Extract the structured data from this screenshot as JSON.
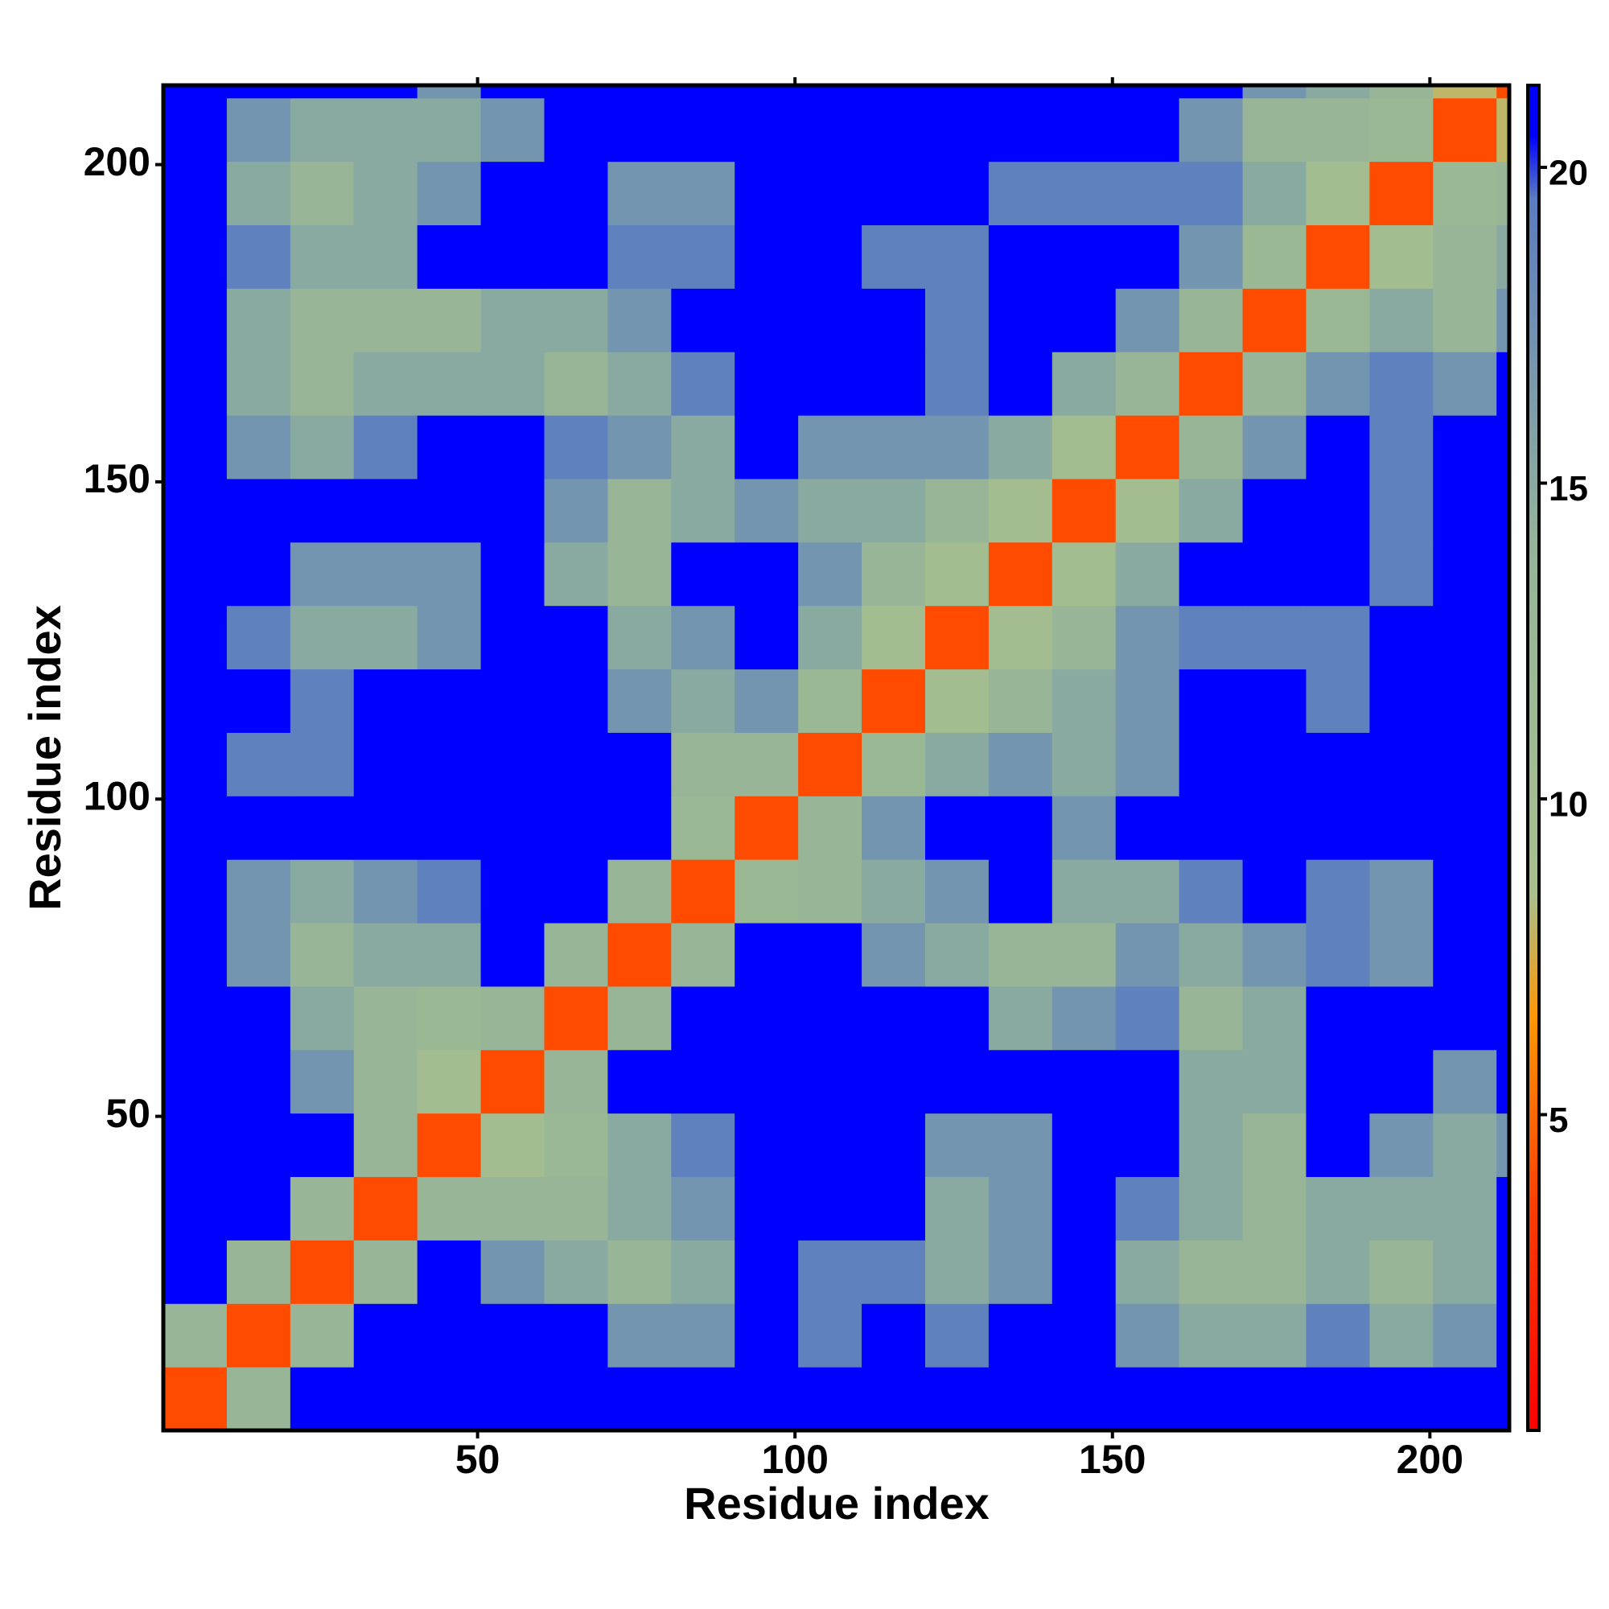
{
  "chart_data": {
    "type": "heatmap",
    "x_label": "Residue index",
    "y_label": "Residue index",
    "x_edges": [
      0.5,
      10.5,
      20.5,
      30.5,
      40.5,
      50.5,
      60.5,
      70.5,
      80.5,
      90.5,
      100.5,
      110.5,
      120.5,
      130.5,
      140.5,
      150.5,
      160.5,
      170.5,
      180.5,
      190.5,
      200.5,
      210.5,
      212.5
    ],
    "y_edges": [
      0.5,
      10.5,
      20.5,
      30.5,
      40.5,
      50.5,
      60.5,
      70.5,
      80.5,
      90.5,
      100.5,
      110.5,
      120.5,
      130.5,
      140.5,
      150.5,
      160.5,
      170.5,
      180.5,
      190.5,
      200.5,
      210.5,
      212.5
    ],
    "xlim": [
      0.5,
      212.5
    ],
    "ylim": [
      0.5,
      212.5
    ],
    "xticks": [
      50,
      100,
      150,
      200
    ],
    "yticks": [
      50,
      100,
      150,
      200
    ],
    "zlim": [
      0,
      21.3
    ],
    "zticks": [
      5,
      10,
      15,
      20
    ],
    "colorscale": [
      {
        "value": 0,
        "color": "#ff0000"
      },
      {
        "value": 3.5,
        "color": "#ff3c00"
      },
      {
        "value": 6.5,
        "color": "#ff9600"
      },
      {
        "value": 8.5,
        "color": "#a8c08c"
      },
      {
        "value": 14,
        "color": "#94b49a"
      },
      {
        "value": 19.5,
        "color": "#5a7cc0"
      },
      {
        "value": 20.5,
        "color": "#0000ff"
      },
      {
        "value": 21.3,
        "color": "#0000ff"
      }
    ],
    "z": [
      [
        4,
        13,
        21,
        21,
        21,
        21,
        21,
        21,
        21,
        21,
        21,
        21,
        21,
        21,
        21,
        21,
        21,
        21,
        21,
        21,
        21,
        21
      ],
      [
        13,
        4,
        13,
        21,
        21,
        21,
        21,
        17,
        17,
        21,
        19,
        21,
        19,
        21,
        21,
        17,
        15,
        15,
        19,
        15,
        17,
        21
      ],
      [
        21,
        13,
        4,
        13,
        21,
        17,
        15,
        13,
        15,
        21,
        19,
        19,
        15,
        17,
        21,
        15,
        13,
        13,
        15,
        13,
        15,
        21
      ],
      [
        21,
        21,
        13,
        4,
        13,
        13,
        13,
        15,
        17,
        21,
        21,
        21,
        15,
        17,
        21,
        19,
        15,
        13,
        15,
        15,
        15,
        21
      ],
      [
        21,
        21,
        21,
        13,
        4,
        10,
        12,
        15,
        19,
        21,
        21,
        21,
        17,
        17,
        21,
        21,
        15,
        13,
        21,
        17,
        15,
        17
      ],
      [
        21,
        21,
        17,
        13,
        10,
        4,
        13,
        21,
        21,
        21,
        21,
        21,
        21,
        21,
        21,
        21,
        15,
        15,
        21,
        21,
        17,
        21
      ],
      [
        21,
        21,
        15,
        13,
        12,
        13,
        4,
        13,
        21,
        21,
        21,
        21,
        21,
        15,
        17,
        19,
        13,
        15,
        21,
        21,
        21,
        21
      ],
      [
        21,
        17,
        13,
        15,
        15,
        21,
        13,
        4,
        13,
        21,
        21,
        17,
        15,
        13,
        13,
        17,
        15,
        17,
        19,
        17,
        21,
        21
      ],
      [
        21,
        17,
        15,
        17,
        19,
        21,
        21,
        13,
        4,
        12,
        13,
        15,
        17,
        21,
        15,
        15,
        19,
        21,
        19,
        17,
        21,
        21
      ],
      [
        21,
        21,
        21,
        21,
        21,
        21,
        21,
        21,
        12,
        4,
        13,
        17,
        21,
        21,
        17,
        21,
        21,
        21,
        21,
        21,
        21,
        21
      ],
      [
        21,
        19,
        19,
        21,
        21,
        21,
        21,
        21,
        13,
        13,
        4,
        12,
        15,
        17,
        15,
        17,
        21,
        21,
        21,
        21,
        21,
        21
      ],
      [
        21,
        21,
        19,
        21,
        21,
        21,
        21,
        17,
        15,
        17,
        12,
        4,
        10,
        13,
        15,
        17,
        21,
        21,
        19,
        21,
        21,
        21
      ],
      [
        21,
        19,
        15,
        15,
        17,
        21,
        21,
        15,
        17,
        21,
        15,
        10,
        4,
        10,
        13,
        17,
        19,
        19,
        19,
        21,
        21,
        21
      ],
      [
        21,
        21,
        17,
        17,
        17,
        21,
        15,
        13,
        21,
        21,
        17,
        13,
        10,
        4,
        10,
        15,
        21,
        21,
        21,
        19,
        21,
        21
      ],
      [
        21,
        21,
        21,
        21,
        21,
        21,
        17,
        13,
        15,
        17,
        15,
        15,
        13,
        10,
        4,
        10,
        15,
        21,
        21,
        19,
        21,
        21
      ],
      [
        21,
        17,
        15,
        19,
        21,
        21,
        19,
        17,
        15,
        21,
        17,
        17,
        17,
        15,
        10,
        4,
        13,
        17,
        21,
        19,
        21,
        21
      ],
      [
        21,
        15,
        13,
        15,
        15,
        15,
        13,
        15,
        19,
        21,
        21,
        21,
        19,
        21,
        15,
        13,
        4,
        13,
        17,
        19,
        17,
        21
      ],
      [
        21,
        15,
        13,
        13,
        13,
        15,
        15,
        17,
        21,
        21,
        21,
        21,
        19,
        21,
        21,
        17,
        13,
        4,
        12,
        15,
        13,
        17
      ],
      [
        21,
        19,
        15,
        15,
        21,
        21,
        21,
        19,
        19,
        21,
        21,
        19,
        19,
        21,
        21,
        21,
        17,
        12,
        4,
        10,
        13,
        15
      ],
      [
        21,
        15,
        13,
        15,
        17,
        21,
        21,
        17,
        17,
        21,
        21,
        21,
        21,
        19,
        19,
        19,
        19,
        15,
        10,
        4,
        12,
        13
      ],
      [
        21,
        17,
        15,
        15,
        15,
        17,
        21,
        21,
        21,
        21,
        21,
        21,
        21,
        21,
        21,
        21,
        17,
        13,
        13,
        12,
        4,
        8
      ],
      [
        21,
        21,
        21,
        21,
        17,
        21,
        21,
        21,
        21,
        21,
        21,
        21,
        21,
        21,
        21,
        21,
        21,
        17,
        15,
        13,
        8,
        4
      ]
    ]
  }
}
